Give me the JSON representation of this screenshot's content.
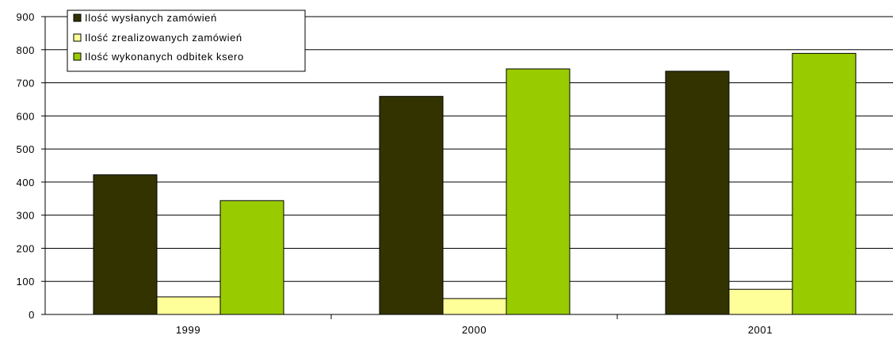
{
  "chart_data": {
    "type": "bar",
    "title": "",
    "xlabel": "",
    "ylabel": "",
    "categories": [
      "1999",
      "2000",
      "2001"
    ],
    "series": [
      {
        "name": "Ilość wysłanych zamówień",
        "color": "#333300",
        "values": [
          422,
          659,
          735
        ]
      },
      {
        "name": "Ilość zrealizowanych zamówień",
        "color": "#ffff99",
        "values": [
          53,
          48,
          76
        ]
      },
      {
        "name": "Ilość wykonanych odbitek ksero",
        "color": "#99cc00",
        "values": [
          344,
          742,
          789
        ]
      }
    ],
    "ylim": [
      0,
      900
    ],
    "yticks": [
      0,
      100,
      200,
      300,
      400,
      500,
      600,
      700,
      800,
      900
    ],
    "grid": true,
    "legend": "top-left"
  }
}
